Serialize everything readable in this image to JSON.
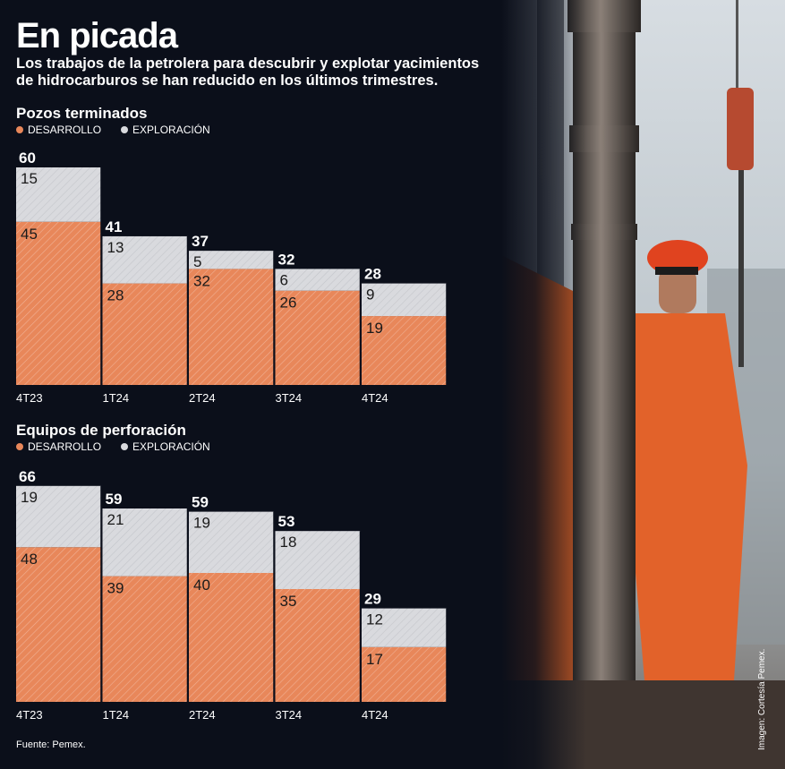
{
  "title": "En picada",
  "subtitle": "Los trabajos de la petrolera para descubrir y explotar yacimientos de hidrocarburos se han reducido en los últimos trimestres.",
  "source": "Fuente: Pemex.",
  "image_credit": "Imagen: Cortesía Pemex.",
  "colors": {
    "desarrollo": "#e8875a",
    "exploracion": "#d9dade",
    "background": "#0b0f1a"
  },
  "chart_data": [
    {
      "type": "bar",
      "stacked": true,
      "title": "Pozos terminados",
      "categories": [
        "4T23",
        "1T24",
        "2T24",
        "3T24",
        "4T24"
      ],
      "series": [
        {
          "name": "DESARROLLO",
          "values": [
            45,
            28,
            32,
            26,
            19
          ]
        },
        {
          "name": "EXPLORACIÓN",
          "values": [
            15,
            13,
            5,
            6,
            9
          ]
        }
      ],
      "totals": [
        60,
        41,
        37,
        32,
        28
      ],
      "legend_position": "top-left",
      "grid": false
    },
    {
      "type": "bar",
      "stacked": true,
      "title": "Equipos de perforación",
      "categories": [
        "4T23",
        "1T24",
        "2T24",
        "3T24",
        "4T24"
      ],
      "series": [
        {
          "name": "DESARROLLO",
          "values": [
            48,
            39,
            40,
            35,
            17
          ]
        },
        {
          "name": "EXPLORACIÓN",
          "values": [
            19,
            21,
            19,
            18,
            12
          ]
        }
      ],
      "totals": [
        66,
        59,
        59,
        53,
        29
      ],
      "legend_position": "top-left",
      "grid": false
    }
  ]
}
